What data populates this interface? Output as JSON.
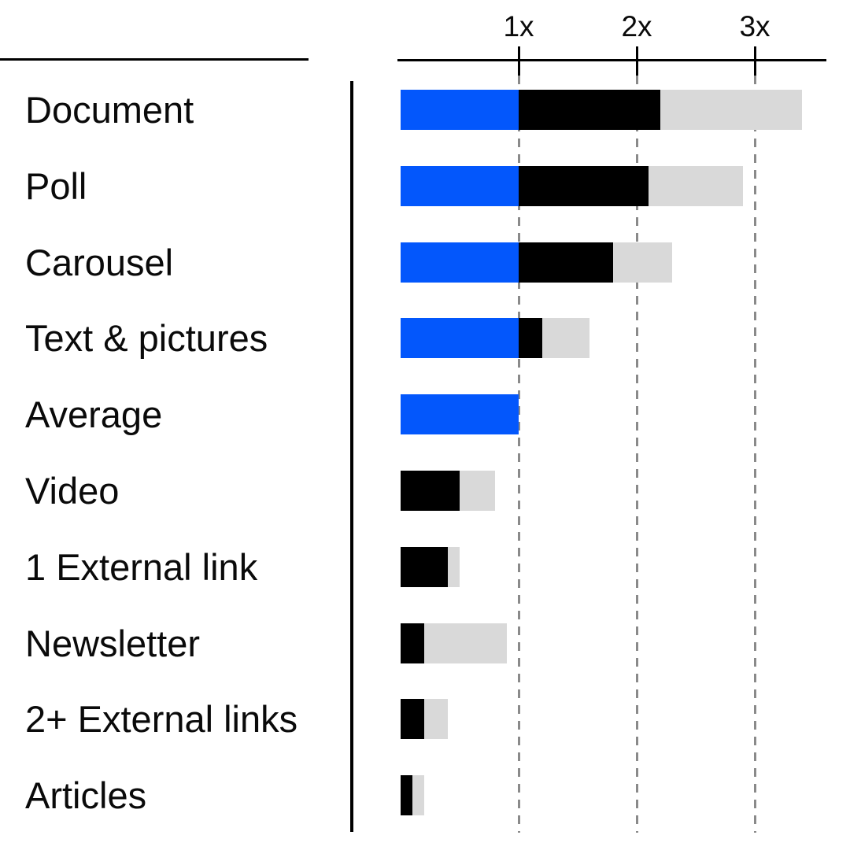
{
  "chart_data": {
    "type": "bar",
    "orientation": "horizontal",
    "title": "",
    "xlabel": "",
    "ylabel": "",
    "xlim": [
      0,
      3.6
    ],
    "grid": "dashed-vertical-at-ticks",
    "legend": "none",
    "x_tick_labels": [
      "1x",
      "2x",
      "3x"
    ],
    "x_tick_values": [
      1,
      2,
      3
    ],
    "categories": [
      "Document",
      "Poll",
      "Carousel",
      "Text & pictures",
      "Average",
      "Video",
      "1 External link",
      "Newsletter",
      "2+ External links",
      "Articles"
    ],
    "rows": [
      {
        "label": "Document",
        "blue_to": 1,
        "black_to": 2.2,
        "gray_to": 3.4
      },
      {
        "label": "Poll",
        "blue_to": 1,
        "black_to": 2.1,
        "gray_to": 2.9
      },
      {
        "label": "Carousel",
        "blue_to": 1,
        "black_to": 1.8,
        "gray_to": 2.3
      },
      {
        "label": "Text & pictures",
        "blue_to": 1,
        "black_to": 1.2,
        "gray_to": 1.6
      },
      {
        "label": "Average",
        "blue_to": 1,
        "black_to": 1.0,
        "gray_to": 1.0
      },
      {
        "label": "Video",
        "blue_to": 0,
        "black_to": 0.5,
        "gray_to": 0.8
      },
      {
        "label": "1 External link",
        "blue_to": 0,
        "black_to": 0.4,
        "gray_to": 0.5
      },
      {
        "label": "Newsletter",
        "blue_to": 0,
        "black_to": 0.2,
        "gray_to": 0.9
      },
      {
        "label": "2+ External links",
        "blue_to": 0,
        "black_to": 0.2,
        "gray_to": 0.4
      },
      {
        "label": "Articles",
        "blue_to": 0,
        "black_to": 0.1,
        "gray_to": 0.2
      }
    ],
    "series": [
      {
        "name": "blue-baseline-segment-end",
        "values": [
          1,
          1,
          1,
          1,
          1,
          0,
          0,
          0,
          0,
          0
        ]
      },
      {
        "name": "black-segment-end",
        "values": [
          2.2,
          2.1,
          1.8,
          1.2,
          1.0,
          0.5,
          0.4,
          0.2,
          0.2,
          0.1
        ]
      },
      {
        "name": "gray-segment-end",
        "values": [
          3.4,
          2.9,
          2.3,
          1.6,
          1.0,
          0.8,
          0.5,
          0.9,
          0.4,
          0.2
        ]
      }
    ],
    "colors": {
      "blue": "#0357FC",
      "black": "#000000",
      "gray": "#D9D9D9",
      "gridline": "#8A8A8A",
      "axis": "#000000",
      "text": "#0A0A0A",
      "background": "#FFFFFF"
    }
  }
}
